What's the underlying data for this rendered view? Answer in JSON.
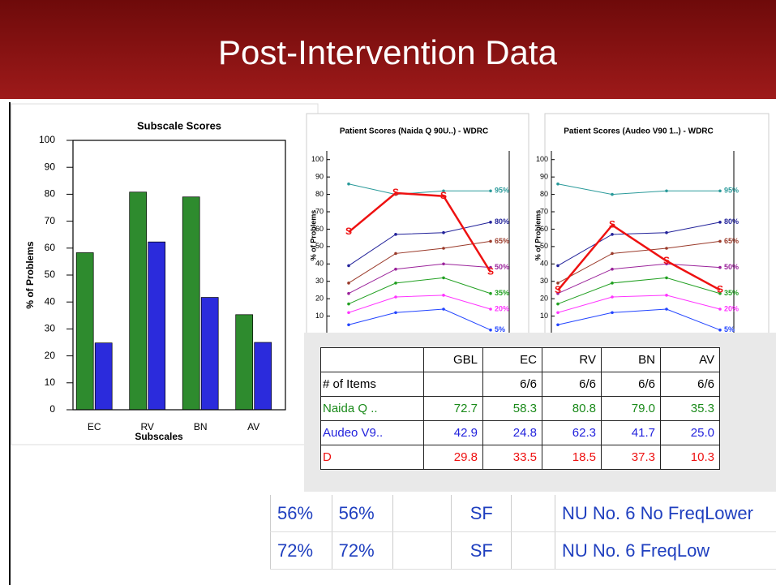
{
  "slide": {
    "title": "Post-Intervention Data"
  },
  "chart_data": [
    {
      "type": "bar",
      "title": "Subscale Scores",
      "xlabel": "Subscales",
      "ylabel": "% of Problems",
      "categories": [
        "EC",
        "RV",
        "BN",
        "AV"
      ],
      "series": [
        {
          "color": "#2e8b2e",
          "values": [
            58.3,
            80.8,
            79.0,
            35.3
          ]
        },
        {
          "color": "#2b2bdc",
          "values": [
            24.8,
            62.3,
            41.7,
            25.0
          ]
        }
      ],
      "ylim": [
        0,
        100
      ],
      "yticks": [
        0,
        10,
        20,
        30,
        40,
        50,
        60,
        70,
        80,
        90,
        100
      ]
    },
    {
      "type": "line",
      "title": "Patient Scores (Naida Q 90U..) - WDRC",
      "ylabel": "% of Problems",
      "ylim": [
        0,
        105
      ],
      "yticks": [
        10,
        20,
        30,
        40,
        50,
        60,
        70,
        80,
        90,
        100
      ],
      "series": [
        {
          "name": "95%",
          "color": "#2a9a9a",
          "values": [
            86,
            80,
            82,
            82
          ]
        },
        {
          "name": "80%",
          "color": "#22229a",
          "values": [
            39,
            57,
            58,
            64
          ]
        },
        {
          "name": "65%",
          "color": "#9a3a2a",
          "values": [
            29,
            46,
            49,
            53
          ]
        },
        {
          "name": "50%",
          "color": "#9a229a",
          "values": [
            23,
            37,
            40,
            38
          ]
        },
        {
          "name": "35%",
          "color": "#22a022",
          "values": [
            17,
            29,
            32,
            23
          ]
        },
        {
          "name": "20%",
          "color": "#ff33ff",
          "values": [
            12,
            21,
            22,
            14
          ]
        },
        {
          "name": "5%",
          "color": "#2244ff",
          "values": [
            5,
            12,
            14,
            2
          ]
        },
        {
          "marker": "S",
          "color": "#ee1111",
          "values": [
            58.3,
            80.8,
            79.0,
            35.3
          ]
        }
      ]
    },
    {
      "type": "line",
      "title": "Patient Scores (Audeo V90 1..) - WDRC",
      "ylabel": "% of Problems",
      "ylim": [
        0,
        105
      ],
      "yticks": [
        10,
        20,
        30,
        40,
        50,
        60,
        70,
        80,
        90,
        100
      ],
      "series": [
        {
          "name": "95%",
          "color": "#2a9a9a",
          "values": [
            86,
            80,
            82,
            82
          ]
        },
        {
          "name": "80%",
          "color": "#22229a",
          "values": [
            39,
            57,
            58,
            64
          ]
        },
        {
          "name": "65%",
          "color": "#9a3a2a",
          "values": [
            29,
            46,
            49,
            53
          ]
        },
        {
          "name": "50%",
          "color": "#9a229a",
          "values": [
            23,
            37,
            40,
            38
          ]
        },
        {
          "name": "35%",
          "color": "#22a022",
          "values": [
            17,
            29,
            32,
            23
          ]
        },
        {
          "name": "20%",
          "color": "#ff33ff",
          "values": [
            12,
            21,
            22,
            14
          ]
        },
        {
          "name": "5%",
          "color": "#2244ff",
          "values": [
            5,
            12,
            14,
            2
          ]
        },
        {
          "marker": "S",
          "color": "#ee1111",
          "values": [
            24.8,
            62.3,
            41.7,
            25.0
          ]
        }
      ]
    }
  ],
  "table": {
    "header": [
      "GBL",
      "EC",
      "RV",
      "BN",
      "AV"
    ],
    "rows": [
      {
        "label": "# of Items",
        "color": "#000000",
        "cells": [
          null,
          "6/6",
          "6/6",
          "6/6",
          "6/6"
        ]
      },
      {
        "label": "Naida Q ..",
        "color": "#1a8a1a",
        "cells": [
          "72.7",
          "58.3",
          "80.8",
          "79.0",
          "35.3"
        ]
      },
      {
        "label": "Audeo V9..",
        "color": "#2222dd",
        "cells": [
          "42.9",
          "24.8",
          "62.3",
          "41.7",
          "25.0"
        ]
      },
      {
        "label": "D",
        "color": "#ee1111",
        "cells": [
          "29.8",
          "33.5",
          "18.5",
          "37.3",
          "10.3"
        ]
      }
    ]
  },
  "list": {
    "rows": [
      {
        "cells": [
          "56%",
          "56%",
          null,
          "SF",
          null,
          "NU No. 6 No FreqLower"
        ]
      },
      {
        "cells": [
          "72%",
          "72%",
          null,
          "SF",
          null,
          "NU No. 6 FreqLow"
        ]
      }
    ]
  }
}
